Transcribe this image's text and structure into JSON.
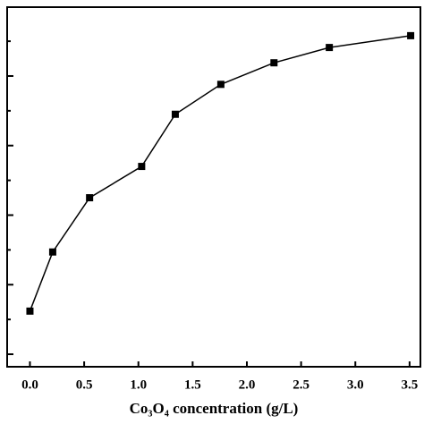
{
  "chart_data": {
    "type": "line",
    "x_label": "Co₃O₄ concentration (g/L)",
    "x": [
      0.0,
      0.21,
      0.55,
      1.03,
      1.34,
      1.76,
      2.25,
      2.76,
      3.51
    ],
    "series": [
      {
        "color": "#000000",
        "values": [
          0.62,
          1.47,
          2.25,
          2.7,
          3.45,
          3.88,
          4.19,
          4.41,
          4.58
        ]
      }
    ],
    "xlim": [
      -0.21,
      3.6
    ],
    "xticks": [
      {
        "value": 0,
        "label": "0.0"
      },
      {
        "value": 0.5,
        "label": "0.5"
      },
      {
        "value": 1,
        "label": "1.0"
      },
      {
        "value": 1.5,
        "label": "1.5"
      },
      {
        "value": 2,
        "label": "2.0"
      },
      {
        "value": 2.5,
        "label": "2.5"
      },
      {
        "value": 3,
        "label": "3.0"
      },
      {
        "value": 3.5,
        "label": "3.5"
      }
    ],
    "ylim": [
      -0.18,
      4.99
    ],
    "yticks": [
      0,
      0.5,
      1,
      1.5,
      2,
      2.5,
      3,
      3.5,
      4,
      4.5
    ]
  }
}
